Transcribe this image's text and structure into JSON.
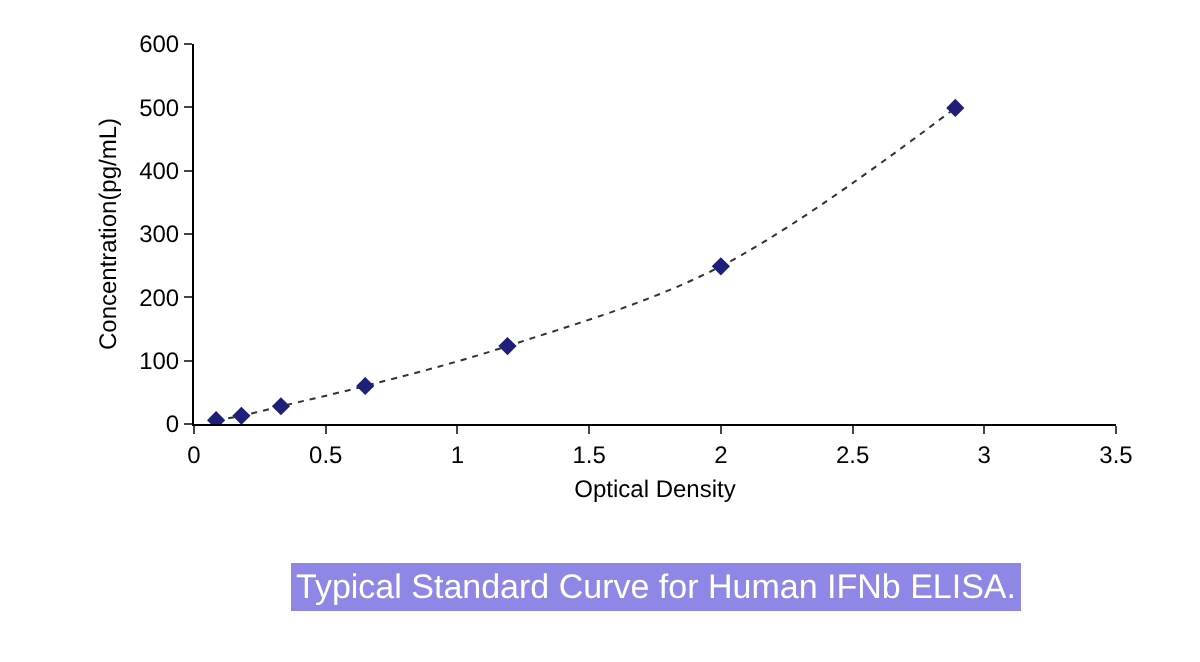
{
  "chart_data": {
    "type": "scatter",
    "xlabel": "Optical Density",
    "ylabel": "Concentration(pg/mL)",
    "annotations": [
      "Typical Standard Curve for Human IFNb ELISA."
    ],
    "x": [
      0.084,
      0.18,
      0.33,
      0.65,
      1.19,
      2.0,
      2.89
    ],
    "series": [
      {
        "type": "scatter",
        "color": "#1f1f7a",
        "marker": "diamond",
        "values": [
          6,
          13,
          28,
          60,
          123,
          249,
          499
        ]
      },
      {
        "type": "line",
        "color": "#333333",
        "line_style": "dotted",
        "marker": "none",
        "x": [
          0.084,
          0.18,
          0.33,
          0.65,
          1.19,
          2.0,
          2.89
        ],
        "values": [
          6,
          13,
          28,
          60,
          123,
          249,
          499
        ]
      }
    ],
    "xlim": [
      0,
      3.5
    ],
    "xticks": [
      0,
      0.5,
      1,
      1.5,
      2,
      2.5,
      3,
      3.5
    ],
    "ylim": [
      0,
      600
    ],
    "yticks": [
      0,
      100,
      200,
      300,
      400,
      500,
      600
    ],
    "grid": false
  }
}
